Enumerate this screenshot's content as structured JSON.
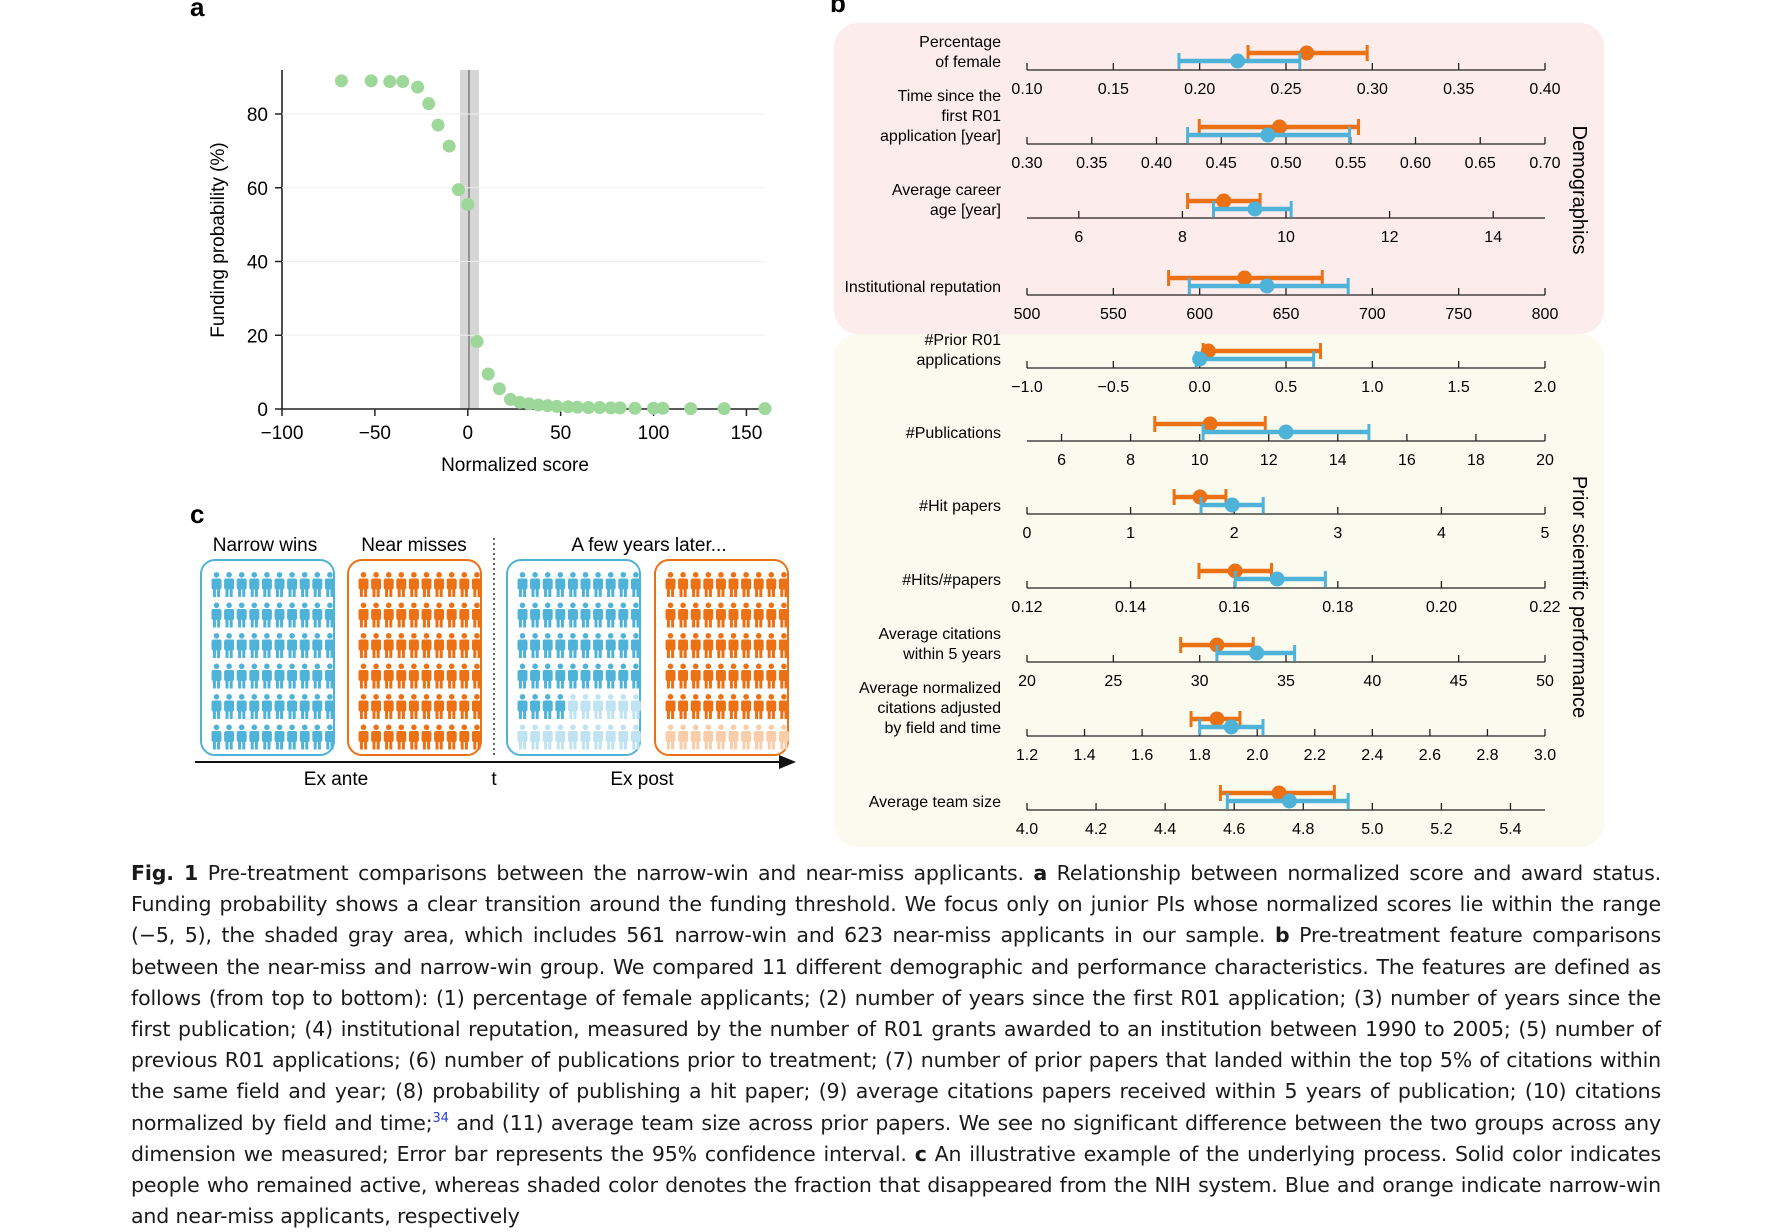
{
  "panel_a": {
    "label": "a",
    "chart_data": {
      "type": "scatter",
      "xlabel": "Normalized score",
      "ylabel": "Funding probability (%)",
      "xlim": [
        -100,
        160
      ],
      "ylim": [
        0,
        92
      ],
      "xticks": [
        "−100",
        "−50",
        "0",
        "50",
        "100",
        "150"
      ],
      "yticks": [
        "0",
        "20",
        "40",
        "60",
        "80"
      ],
      "shaded_range": [
        -5,
        5
      ],
      "points": [
        [
          -68,
          89
        ],
        [
          -52,
          89
        ],
        [
          -42,
          88.8
        ],
        [
          -35,
          88.8
        ],
        [
          -27,
          87.3
        ],
        [
          -21,
          82.8
        ],
        [
          -16,
          77
        ],
        [
          -10,
          71.3
        ],
        [
          -5,
          59.5
        ],
        [
          0,
          55.5
        ],
        [
          5,
          18.3
        ],
        [
          11,
          9.5
        ],
        [
          17,
          5.5
        ],
        [
          23,
          2.6
        ],
        [
          28,
          1.8
        ],
        [
          33,
          1.4
        ],
        [
          38,
          1.1
        ],
        [
          43,
          0.9
        ],
        [
          48,
          0.7
        ],
        [
          54,
          0.6
        ],
        [
          59,
          0.5
        ],
        [
          65,
          0.4
        ],
        [
          71,
          0.4
        ],
        [
          77,
          0.3
        ],
        [
          82,
          0.3
        ],
        [
          90,
          0.2
        ],
        [
          100,
          0.2
        ],
        [
          105,
          0.2
        ],
        [
          120,
          0.1
        ],
        [
          138,
          0.1
        ],
        [
          160,
          0.1
        ]
      ]
    }
  },
  "panel_b": {
    "label": "b",
    "legend_colors": {
      "narrow_win": "#4fb3d9",
      "near_miss": "#ec7014"
    },
    "group_labels": [
      "Demographics",
      "Prior scientific performance"
    ],
    "chart_data": {
      "type": "errorbar",
      "rows": [
        {
          "label": [
            "Percentage",
            "of female"
          ],
          "xlim": [
            0.1,
            0.4
          ],
          "ticks": [
            "0.10",
            "0.15",
            "0.20",
            "0.25",
            "0.30",
            "0.35",
            "0.40"
          ],
          "tick_values": [
            0.1,
            0.15,
            0.2,
            0.25,
            0.3,
            0.35,
            0.4
          ],
          "near_miss": {
            "mean": 0.262,
            "lo": 0.228,
            "hi": 0.297
          },
          "narrow_win": {
            "mean": 0.222,
            "lo": 0.188,
            "hi": 0.258
          }
        },
        {
          "label": [
            "Time since the",
            "first R01",
            "application [year]"
          ],
          "xlim": [
            0.3,
            0.7
          ],
          "ticks": [
            "0.30",
            "0.35",
            "0.40",
            "0.45",
            "0.50",
            "0.55",
            "0.60",
            "0.65",
            "0.70"
          ],
          "tick_values": [
            0.3,
            0.35,
            0.4,
            0.45,
            0.5,
            0.55,
            0.6,
            0.65,
            0.7
          ],
          "near_miss": {
            "mean": 0.495,
            "lo": 0.433,
            "hi": 0.556
          },
          "narrow_win": {
            "mean": 0.486,
            "lo": 0.424,
            "hi": 0.549
          }
        },
        {
          "label": [
            "Average career",
            "age [year]"
          ],
          "xlim": [
            5,
            15
          ],
          "ticks": [
            "6",
            "8",
            "10",
            "12",
            "14"
          ],
          "tick_values": [
            6,
            8,
            10,
            12,
            14
          ],
          "near_miss": {
            "mean": 8.8,
            "lo": 8.1,
            "hi": 9.5
          },
          "narrow_win": {
            "mean": 9.4,
            "lo": 8.6,
            "hi": 10.1
          }
        },
        {
          "label": [
            "Institutional reputation"
          ],
          "xlim": [
            500,
            800
          ],
          "ticks": [
            "500",
            "550",
            "600",
            "650",
            "700",
            "750",
            "800"
          ],
          "tick_values": [
            500,
            550,
            600,
            650,
            700,
            750,
            800
          ],
          "near_miss": {
            "mean": 626,
            "lo": 582,
            "hi": 671
          },
          "narrow_win": {
            "mean": 639,
            "lo": 594,
            "hi": 686
          }
        },
        {
          "label": [
            "#Prior R01",
            "applications"
          ],
          "xlim": [
            -1.0,
            2.0
          ],
          "ticks": [
            "−1.0",
            "−0.5",
            "0.0",
            "0.5",
            "1.0",
            "1.5",
            "2.0"
          ],
          "tick_values": [
            -1.0,
            -0.5,
            0.0,
            0.5,
            1.0,
            1.5,
            2.0
          ],
          "near_miss": {
            "mean": 0.05,
            "lo": 0.02,
            "hi": 0.7
          },
          "narrow_win": {
            "mean": 0.0,
            "lo": -0.02,
            "hi": 0.66
          }
        },
        {
          "label": [
            "#Publications"
          ],
          "xlim": [
            5,
            20
          ],
          "ticks": [
            "6",
            "8",
            "10",
            "12",
            "14",
            "16",
            "18",
            "20"
          ],
          "tick_values": [
            6,
            8,
            10,
            12,
            14,
            16,
            18,
            20
          ],
          "near_miss": {
            "mean": 10.3,
            "lo": 8.7,
            "hi": 11.9
          },
          "narrow_win": {
            "mean": 12.5,
            "lo": 10.1,
            "hi": 14.9
          }
        },
        {
          "label": [
            "#Hit papers"
          ],
          "xlim": [
            0,
            5
          ],
          "ticks": [
            "0",
            "1",
            "2",
            "3",
            "4",
            "5"
          ],
          "tick_values": [
            0,
            1,
            2,
            3,
            4,
            5
          ],
          "near_miss": {
            "mean": 1.67,
            "lo": 1.42,
            "hi": 1.92
          },
          "narrow_win": {
            "mean": 1.98,
            "lo": 1.68,
            "hi": 2.28
          }
        },
        {
          "label": [
            "#Hits/#papers"
          ],
          "xlim": [
            0.12,
            0.22
          ],
          "ticks": [
            "0.12",
            "0.14",
            "0.16",
            "0.18",
            "0.20",
            "0.22"
          ],
          "tick_values": [
            0.12,
            0.14,
            0.16,
            0.18,
            0.2,
            0.22
          ],
          "near_miss": {
            "mean": 0.1602,
            "lo": 0.1532,
            "hi": 0.1672
          },
          "narrow_win": {
            "mean": 0.1683,
            "lo": 0.1602,
            "hi": 0.1776
          }
        },
        {
          "label": [
            "Average citations",
            "within 5 years"
          ],
          "xlim": [
            20,
            50
          ],
          "ticks": [
            "20",
            "25",
            "30",
            "35",
            "40",
            "45",
            "50"
          ],
          "tick_values": [
            20,
            25,
            30,
            35,
            40,
            45,
            50
          ],
          "near_miss": {
            "mean": 31.0,
            "lo": 28.9,
            "hi": 33.1
          },
          "narrow_win": {
            "mean": 33.3,
            "lo": 31.0,
            "hi": 35.5
          }
        },
        {
          "label": [
            "Average normalized",
            "citations adjusted",
            "by field and time"
          ],
          "xlim": [
            1.2,
            3.0
          ],
          "ticks": [
            "1.2",
            "1.4",
            "1.6",
            "1.8",
            "2.0",
            "2.2",
            "2.4",
            "2.6",
            "2.8",
            "3.0"
          ],
          "tick_values": [
            1.2,
            1.4,
            1.6,
            1.8,
            2.0,
            2.2,
            2.4,
            2.6,
            2.8,
            3.0
          ],
          "near_miss": {
            "mean": 1.86,
            "lo": 1.77,
            "hi": 1.94
          },
          "narrow_win": {
            "mean": 1.91,
            "lo": 1.8,
            "hi": 2.02
          }
        },
        {
          "label": [
            "Average team size"
          ],
          "xlim": [
            4.0,
            5.5
          ],
          "ticks": [
            "4.0",
            "4.2",
            "4.4",
            "4.6",
            "4.8",
            "5.0",
            "5.2",
            "5.4"
          ],
          "tick_values": [
            4.0,
            4.2,
            4.4,
            4.6,
            4.8,
            5.0,
            5.2,
            5.4
          ],
          "near_miss": {
            "mean": 4.73,
            "lo": 4.56,
            "hi": 4.89
          },
          "narrow_win": {
            "mean": 4.76,
            "lo": 4.58,
            "hi": 4.93
          }
        }
      ]
    }
  },
  "panel_c": {
    "label": "c",
    "group_titles": [
      "Narrow wins",
      "Near misses",
      "A few years later..."
    ],
    "axis_labels": {
      "ex_ante": "Ex ante",
      "t": "t",
      "ex_post": "Ex post"
    },
    "icon_name": "person-icon",
    "grid": {
      "rows": 6,
      "cols": 10
    },
    "groups": [
      {
        "name": "narrow-wins-ex-ante",
        "color": "#4fb3d9",
        "faded_color": "#bfe3f1",
        "active": 60
      },
      {
        "name": "near-misses-ex-ante",
        "color": "#ec7014",
        "faded_color": "#f9cdaa",
        "active": 60
      },
      {
        "name": "narrow-wins-ex-post",
        "color": "#4fb3d9",
        "faded_color": "#bfe3f1",
        "active": 44
      },
      {
        "name": "near-misses-ex-post",
        "color": "#ec7014",
        "faded_color": "#f9cdaa",
        "active": 50
      }
    ]
  },
  "caption": {
    "fig_label": "Fig. 1",
    "title": "Pre-treatment comparisons between the narrow-win and near-miss applicants.",
    "a_label": "a",
    "a_text": "Relationship between normalized score and award status. Funding probability shows a clear transition around the funding threshold. We focus only on junior PIs whose normalized scores lie within the range (−5, 5), the shaded gray area, which includes 561 narrow-win and 623 near-miss applicants in our sample.",
    "b_label": "b",
    "b_text": "Pre-treatment feature comparisons between the near-miss and narrow-win group. We compared 11 different demographic and performance characteristics. The features are defined as follows (from top to bottom): (1) percentage of female applicants; (2) number of years since the first R01 application; (3) number of years since the first publication; (4) institutional reputation, measured by the number of R01 grants awarded to an institution between 1990 to 2005; (5) number of previous R01 applications; (6) number of publications prior to treatment; (7) number of prior papers that landed within the top 5% of citations within the same field and year; (8) probability of publishing a hit paper; (9) average citations papers received within 5 years of publication; (10) citations normalized by field and time;",
    "ref": "34",
    "b_text_2": "and (11) average team size across prior papers. We see no significant difference between the two groups across any dimension we measured; Error bar represents the 95% confidence interval.",
    "c_label": "c",
    "c_text": "An illustrative example of the underlying process. Solid color indicates people who remained active, whereas shaded color denotes the fraction that disappeared from the NIH system. Blue and orange indicate narrow-win and near-miss applicants, respectively"
  }
}
